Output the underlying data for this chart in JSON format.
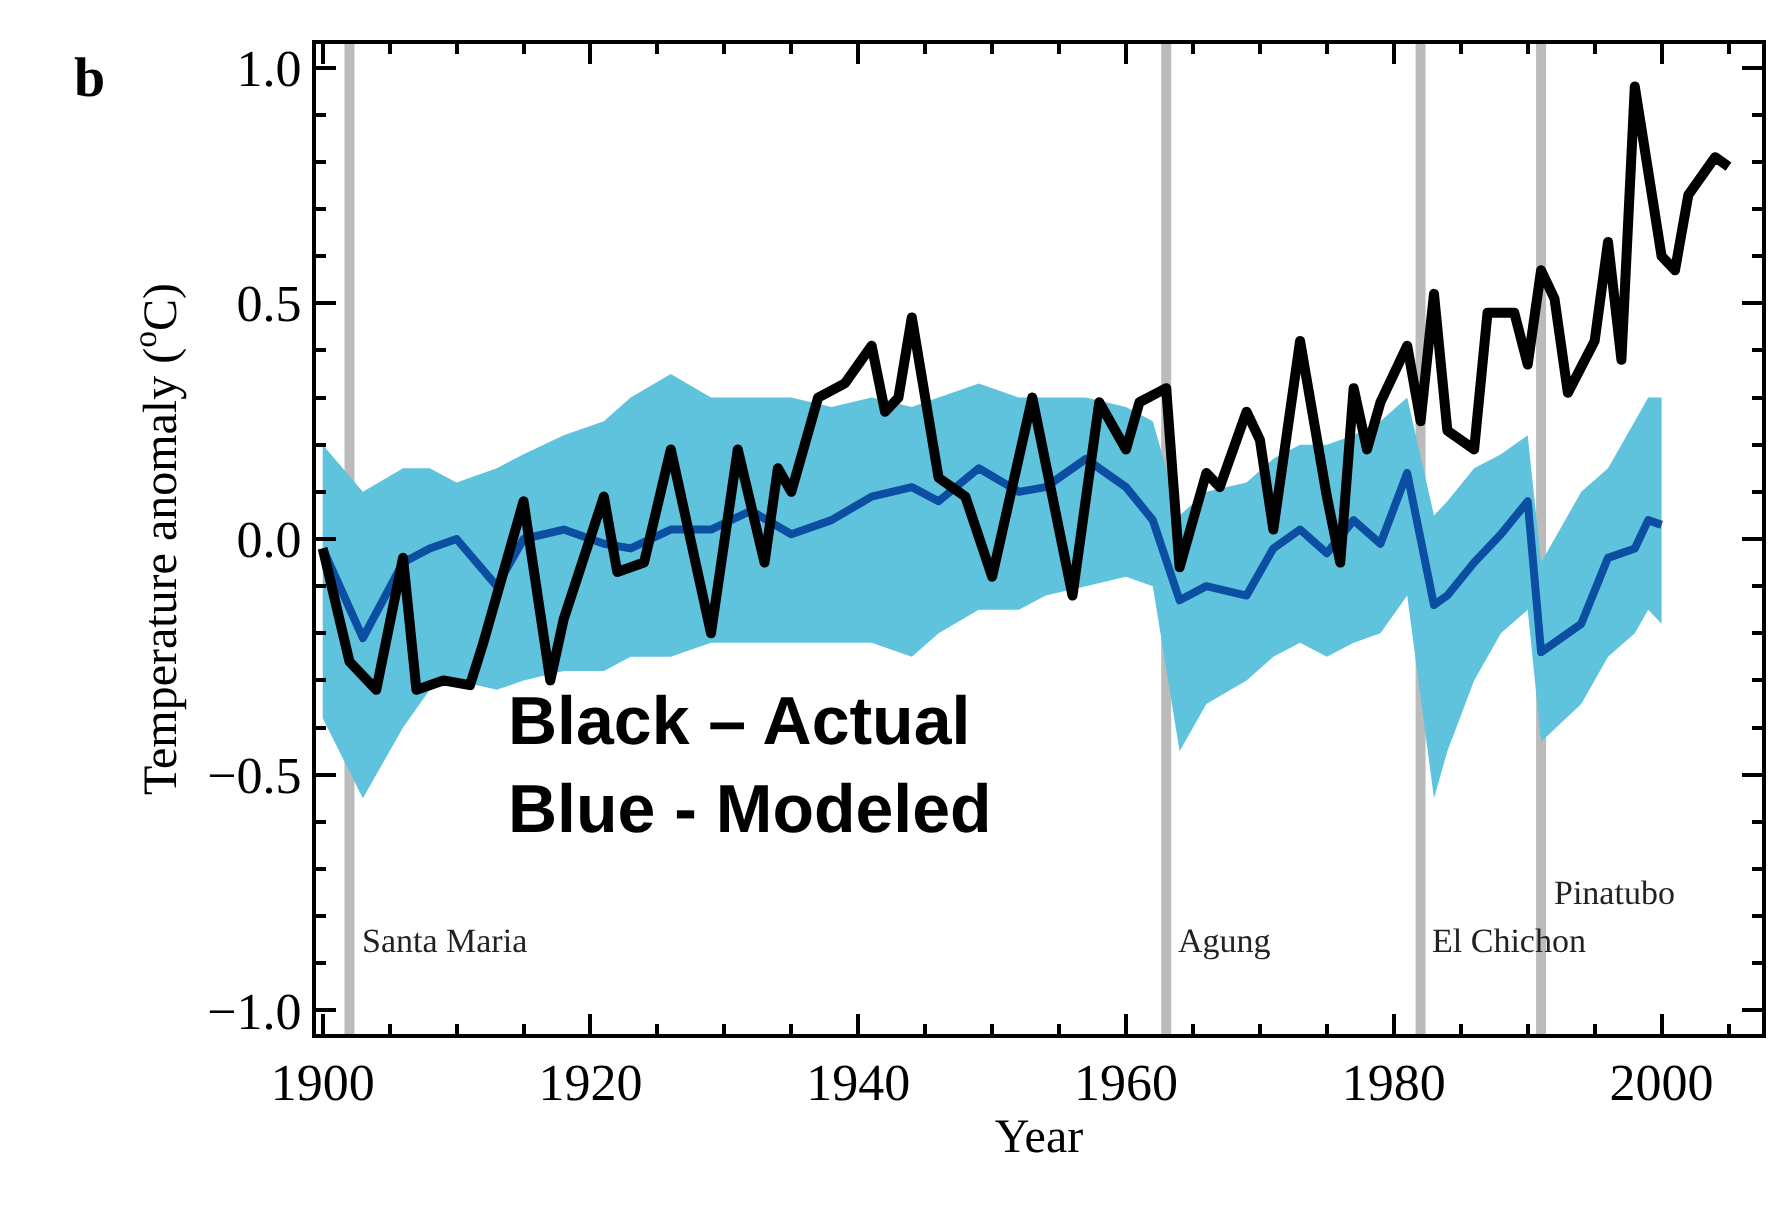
{
  "chart_data": {
    "type": "line",
    "xlabel": "Year",
    "ylabel": "Temperature anomaly ($^{o}$C)",
    "xlim": [
      1899.5,
      2007.5
    ],
    "xticks": [
      1900,
      1920,
      1940,
      1960,
      1980,
      2000
    ],
    "ylim": [
      -1.05,
      1.05
    ],
    "yticks": [
      {
        "value": -1.0,
        "label": "−1.0"
      },
      {
        "value": -0.5,
        "label": "−0.5"
      },
      {
        "value": 0.0,
        "label": "0.0"
      },
      {
        "value": 0.5,
        "label": "0.5"
      },
      {
        "value": 1.0,
        "label": "1.0"
      }
    ],
    "grid": false,
    "marker": "none",
    "line_style": "solid",
    "series": [
      {
        "color": "#0b4ea2",
        "x": [
          1900,
          1903,
          1906,
          1908,
          1910,
          1913,
          1915,
          1918,
          1921,
          1923,
          1926,
          1929,
          1932,
          1935,
          1938,
          1941,
          1944,
          1946,
          1949,
          1952,
          1954,
          1957,
          1960,
          1962,
          1964,
          1966,
          1969,
          1971,
          1973,
          1975,
          1977,
          1979,
          1981,
          1983,
          1984,
          1986,
          1988,
          1990,
          1991,
          1994,
          1996,
          1998,
          1999,
          2000
        ],
        "values": [
          -0.02,
          -0.21,
          -0.05,
          -0.02,
          0.0,
          -0.1,
          0.0,
          0.02,
          -0.01,
          -0.02,
          0.02,
          0.02,
          0.06,
          0.01,
          0.04,
          0.09,
          0.11,
          0.08,
          0.15,
          0.1,
          0.11,
          0.17,
          0.11,
          0.04,
          -0.13,
          -0.1,
          -0.12,
          -0.02,
          0.02,
          -0.03,
          0.04,
          -0.01,
          0.14,
          -0.14,
          -0.12,
          -0.05,
          0.01,
          0.08,
          -0.24,
          -0.18,
          -0.04,
          -0.02,
          0.04,
          0.03
        ],
        "lower": [
          -0.38,
          -0.55,
          -0.4,
          -0.32,
          -0.3,
          -0.32,
          -0.3,
          -0.28,
          -0.28,
          -0.25,
          -0.25,
          -0.22,
          -0.22,
          -0.22,
          -0.22,
          -0.22,
          -0.25,
          -0.2,
          -0.15,
          -0.15,
          -0.12,
          -0.1,
          -0.08,
          -0.1,
          -0.45,
          -0.35,
          -0.3,
          -0.25,
          -0.22,
          -0.25,
          -0.22,
          -0.2,
          -0.12,
          -0.55,
          -0.45,
          -0.3,
          -0.2,
          -0.15,
          -0.43,
          -0.35,
          -0.25,
          -0.2,
          -0.15,
          -0.18
        ],
        "upper": [
          0.2,
          0.1,
          0.15,
          0.15,
          0.12,
          0.15,
          0.18,
          0.22,
          0.25,
          0.3,
          0.35,
          0.3,
          0.3,
          0.3,
          0.28,
          0.3,
          0.28,
          0.3,
          0.33,
          0.3,
          0.3,
          0.3,
          0.28,
          0.25,
          0.05,
          0.1,
          0.12,
          0.17,
          0.2,
          0.2,
          0.22,
          0.25,
          0.3,
          0.05,
          0.08,
          0.15,
          0.18,
          0.22,
          -0.05,
          0.1,
          0.15,
          0.25,
          0.3,
          0.3
        ]
      },
      {
        "color": "#000000",
        "x": [
          1900,
          1902,
          1904,
          1906,
          1907,
          1909,
          1911,
          1912,
          1915,
          1917,
          1918,
          1921,
          1922,
          1924,
          1926,
          1927,
          1929,
          1931,
          1933,
          1934,
          1935,
          1937,
          1939,
          1941,
          1942,
          1943,
          1944,
          1946,
          1948,
          1950,
          1953,
          1956,
          1958,
          1960,
          1961,
          1963,
          1964,
          1966,
          1967,
          1969,
          1970,
          1971,
          1973,
          1975,
          1976,
          1977,
          1978,
          1979,
          1981,
          1982,
          1983,
          1984,
          1986,
          1987,
          1989,
          1990,
          1991,
          1992,
          1993,
          1995,
          1996,
          1997,
          1998,
          2000,
          2001,
          2002,
          2004,
          2005
        ],
        "values": [
          -0.02,
          -0.26,
          -0.32,
          -0.04,
          -0.32,
          -0.3,
          -0.31,
          -0.22,
          0.08,
          -0.3,
          -0.17,
          0.09,
          -0.07,
          -0.05,
          0.19,
          0.06,
          -0.2,
          0.19,
          -0.05,
          0.15,
          0.1,
          0.3,
          0.33,
          0.41,
          0.27,
          0.3,
          0.47,
          0.13,
          0.09,
          -0.08,
          0.3,
          -0.12,
          0.29,
          0.19,
          0.29,
          0.32,
          -0.06,
          0.14,
          0.11,
          0.27,
          0.21,
          0.02,
          0.42,
          0.09,
          -0.05,
          0.32,
          0.19,
          0.29,
          0.41,
          0.25,
          0.52,
          0.23,
          0.19,
          0.48,
          0.48,
          0.37,
          0.57,
          0.51,
          0.31,
          0.42,
          0.63,
          0.38,
          0.96,
          0.6,
          0.57,
          0.73,
          0.81,
          0.79
        ]
      }
    ],
    "ref_lines": [
      {
        "axis": "x",
        "value": 1902,
        "label": "Santa Maria",
        "color": "#bbbbbb"
      },
      {
        "axis": "x",
        "value": 1963,
        "label": "Agung",
        "color": "#bbbbbb"
      },
      {
        "axis": "x",
        "value": 1982,
        "label": "El Chichon",
        "color": "#bbbbbb"
      },
      {
        "axis": "x",
        "value": 1991,
        "label": "Pinatubo",
        "color": "#bbbbbb"
      }
    ],
    "annotations": [
      "b",
      "Black – Actual\nBlue - Modeled"
    ]
  }
}
